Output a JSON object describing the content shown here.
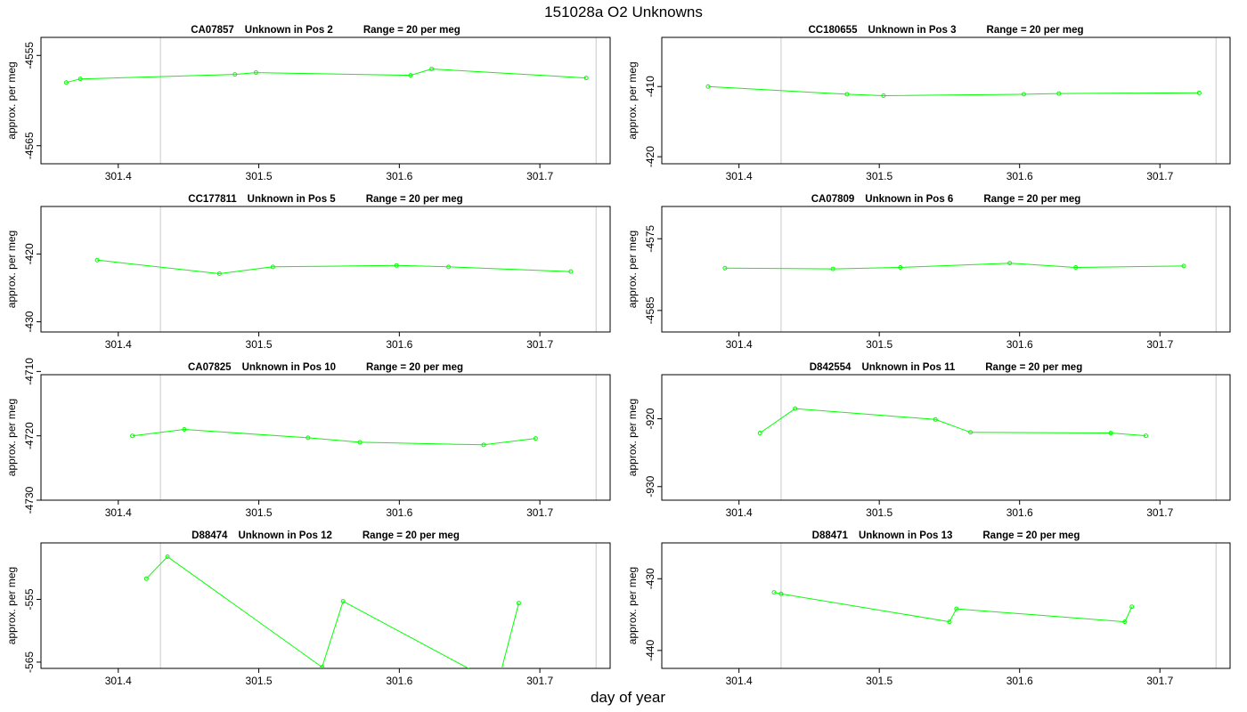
{
  "title": "151028a  O2 Unknowns",
  "xlabel": "day of year",
  "colors": {
    "series": "#00ff00",
    "vline": "#c8c8c8",
    "axis": "#000000"
  },
  "chart_data": [
    {
      "type": "line",
      "sample": "CA07857",
      "position": "Unknown in Pos 2",
      "range": "Range = 20 per meg",
      "ylabel": "approx. per meg",
      "xlim": [
        301.345,
        301.75
      ],
      "ylim": [
        -4567,
        -4553
      ],
      "xticks": [
        301.4,
        301.5,
        301.6,
        301.7
      ],
      "yticks": [
        -4555,
        -4565
      ],
      "vlines": [
        301.43,
        301.74
      ],
      "x": [
        301.363,
        301.373,
        301.483,
        301.498,
        301.608,
        301.623,
        301.733
      ],
      "y": [
        -4558.0,
        -4557.6,
        -4557.1,
        -4556.9,
        -4557.2,
        -4556.5,
        -4557.5
      ]
    },
    {
      "type": "line",
      "sample": "CC180655",
      "position": "Unknown in Pos 3",
      "range": "Range = 20 per meg",
      "ylabel": "approx. per meg",
      "xlim": [
        301.345,
        301.75
      ],
      "ylim": [
        -421,
        -403
      ],
      "xticks": [
        301.4,
        301.5,
        301.6,
        301.7
      ],
      "yticks": [
        -410,
        -420
      ],
      "vlines": [
        301.43,
        301.74
      ],
      "x": [
        301.378,
        301.477,
        301.503,
        301.603,
        301.628,
        301.728
      ],
      "y": [
        -410.0,
        -411.1,
        -411.3,
        -411.1,
        -411.0,
        -410.9
      ]
    },
    {
      "type": "line",
      "sample": "CC177811",
      "position": "Unknown in Pos 5",
      "range": "Range = 20 per meg",
      "ylabel": "approx. per meg",
      "xlim": [
        301.345,
        301.75
      ],
      "ylim": [
        -431.5,
        -413
      ],
      "xticks": [
        301.4,
        301.5,
        301.6,
        301.7
      ],
      "yticks": [
        -420,
        -430
      ],
      "vlines": [
        301.43,
        301.74
      ],
      "x": [
        301.385,
        301.472,
        301.51,
        301.598,
        301.635,
        301.722
      ],
      "y": [
        -420.9,
        -422.9,
        -421.9,
        -421.7,
        -421.9,
        -422.6
      ]
    },
    {
      "type": "line",
      "sample": "CA07809",
      "position": "Unknown in Pos 6",
      "range": "Range = 20 per meg",
      "ylabel": "approx. per meg",
      "xlim": [
        301.345,
        301.75
      ],
      "ylim": [
        -4588,
        -4570.5
      ],
      "xticks": [
        301.4,
        301.5,
        301.6,
        301.7
      ],
      "yticks": [
        -4575,
        -4585
      ],
      "vlines": [
        301.43,
        301.74
      ],
      "x": [
        301.39,
        301.467,
        301.515,
        301.593,
        301.64,
        301.717
      ],
      "y": [
        -4579.1,
        -4579.2,
        -4579.0,
        -4578.4,
        -4579.0,
        -4578.8
      ]
    },
    {
      "type": "line",
      "sample": "CA07825",
      "position": "Unknown in Pos 10",
      "range": "Range = 20 per meg",
      "ylabel": "approx. per meg",
      "xlim": [
        301.345,
        301.75
      ],
      "ylim": [
        -4730,
        -4710.5
      ],
      "xticks": [
        301.4,
        301.5,
        301.6,
        301.7
      ],
      "yticks": [
        -4710,
        -4720,
        -4730
      ],
      "vlines": [
        301.43,
        301.74
      ],
      "x": [
        301.41,
        301.447,
        301.535,
        301.572,
        301.66,
        301.697
      ],
      "y": [
        -4720.0,
        -4719.0,
        -4720.3,
        -4721.0,
        -4721.4,
        -4720.4
      ]
    },
    {
      "type": "line",
      "sample": "D842554",
      "position": "Unknown in Pos 11",
      "range": "Range = 20 per meg",
      "ylabel": "approx. per meg",
      "xlim": [
        301.345,
        301.75
      ],
      "ylim": [
        -932,
        -913.5
      ],
      "xticks": [
        301.4,
        301.5,
        301.6,
        301.7
      ],
      "yticks": [
        -920,
        -930
      ],
      "vlines": [
        301.43,
        301.74
      ],
      "x": [
        301.415,
        301.44,
        301.54,
        301.565,
        301.665,
        301.69
      ],
      "y": [
        -922.1,
        -918.5,
        -920.1,
        -922.0,
        -922.1,
        -922.5
      ]
    },
    {
      "type": "line",
      "sample": "D88474",
      "position": "Unknown in Pos 12",
      "range": "Range = 20 per meg",
      "ylabel": "approx. per meg",
      "xlim": [
        301.345,
        301.75
      ],
      "ylim": [
        -566,
        -546
      ],
      "xticks": [
        301.4,
        301.5,
        301.6,
        301.7
      ],
      "yticks": [
        -555,
        -565
      ],
      "vlines": [
        301.43,
        301.74
      ],
      "x": [
        301.42,
        301.435,
        301.545,
        301.56,
        301.67,
        301.685
      ],
      "y": [
        -551.7,
        -548.2,
        -565.8,
        -555.3,
        -568.5,
        -555.6
      ]
    },
    {
      "type": "line",
      "sample": "D88471",
      "position": "Unknown in Pos 13",
      "range": "Range = 20 per meg",
      "ylabel": "approx. per meg",
      "xlim": [
        301.345,
        301.75
      ],
      "ylim": [
        -442.5,
        -425
      ],
      "xticks": [
        301.4,
        301.5,
        301.6,
        301.7
      ],
      "yticks": [
        -430,
        -440
      ],
      "vlines": [
        301.43,
        301.74
      ],
      "x": [
        301.425,
        301.43,
        301.55,
        301.555,
        301.675,
        301.68
      ],
      "y": [
        -431.9,
        -432.1,
        -436.0,
        -434.2,
        -436.0,
        -433.9
      ]
    }
  ]
}
